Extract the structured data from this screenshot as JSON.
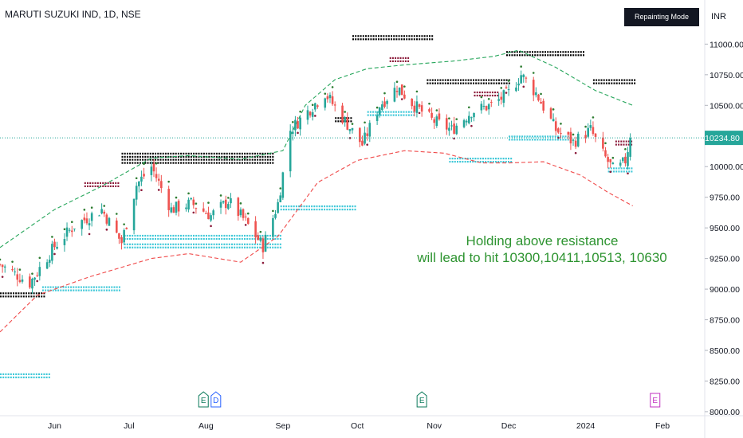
{
  "header": {
    "symbol_title": "MARUTI SUZUKI IND, 1D, NSE",
    "repaint_badge": "Repainting Mode Enabled",
    "currency": "INR"
  },
  "annotation": {
    "line1": "Holding above resistance",
    "line2": "will lead to hit 10300,10411,10513, 10630"
  },
  "colors": {
    "up": "#26a69a",
    "down": "#ef5350",
    "upper_band": "#26a65b",
    "lower_band": "#f04a4a",
    "support_dots": "#3ec8d8",
    "resistance_dots": "#8b1a3a",
    "level_dots": "#000000",
    "signal_green": "#2e7d32",
    "text": "#131722",
    "annotation": "#2e9431",
    "event_earnings": "#0b7a5a",
    "event_dividend": "#2962ff",
    "event_e_purple": "#c030c0"
  },
  "chart_data": {
    "type": "candlestick",
    "title": "MARUTI SUZUKI IND, 1D, NSE",
    "ylim": [
      7980,
      11100
    ],
    "y_ticks": [
      11000,
      10750,
      10500,
      10250,
      10000,
      9750,
      9500,
      9250,
      9000,
      8750,
      8500,
      8250,
      8000
    ],
    "y_tick_labels": [
      "11000.00",
      "10750.00",
      "10500.00",
      "10250.00",
      "10000.00",
      "9750.00",
      "9500.00",
      "9250.00",
      "9000.00",
      "8750.00",
      "8500.00",
      "8250.00",
      "8000.00"
    ],
    "x_ticks": [
      {
        "label": "Jun",
        "date": "2023-06-01"
      },
      {
        "label": "Jul",
        "date": "2023-07-01"
      },
      {
        "label": "Aug",
        "date": "2023-08-01"
      },
      {
        "label": "Sep",
        "date": "2023-09-01"
      },
      {
        "label": "Oct",
        "date": "2023-10-01"
      },
      {
        "label": "Nov",
        "date": "2023-11-01"
      },
      {
        "label": "Dec",
        "date": "2023-12-01"
      },
      {
        "label": "2024",
        "date": "2024-01-01"
      },
      {
        "label": "Feb",
        "date": "2024-02-01"
      }
    ],
    "x_range": [
      "2023-05-10",
      "2024-02-18"
    ],
    "last_price": 10234.8,
    "last_price_label": "10234.80",
    "events": [
      {
        "label": "E",
        "date": "2023-07-31",
        "kind": "earnings"
      },
      {
        "label": "D",
        "date": "2023-08-05",
        "kind": "dividend"
      },
      {
        "label": "E",
        "date": "2023-10-27",
        "kind": "earnings"
      },
      {
        "label": "E",
        "date": "2024-01-29",
        "kind": "future"
      }
    ],
    "waypoints": [
      [
        "2023-05-10",
        9200
      ],
      [
        "2023-05-22",
        9050
      ],
      [
        "2023-06-01",
        9350
      ],
      [
        "2023-06-09",
        9520
      ],
      [
        "2023-06-20",
        9650
      ],
      [
        "2023-06-28",
        9380
      ],
      [
        "2023-07-04",
        9850
      ],
      [
        "2023-07-10",
        10000
      ],
      [
        "2023-07-18",
        9650
      ],
      [
        "2023-07-26",
        9700
      ],
      [
        "2023-08-03",
        9600
      ],
      [
        "2023-08-10",
        9720
      ],
      [
        "2023-08-17",
        9550
      ],
      [
        "2023-08-24",
        9350
      ],
      [
        "2023-08-30",
        9700
      ],
      [
        "2023-09-04",
        10300
      ],
      [
        "2023-09-11",
        10450
      ],
      [
        "2023-09-18",
        10600
      ],
      [
        "2023-09-25",
        10400
      ],
      [
        "2023-10-03",
        10180
      ],
      [
        "2023-10-10",
        10500
      ],
      [
        "2023-10-17",
        10650
      ],
      [
        "2023-10-24",
        10500
      ],
      [
        "2023-10-31",
        10380
      ],
      [
        "2023-11-08",
        10300
      ],
      [
        "2023-11-16",
        10450
      ],
      [
        "2023-11-24",
        10500
      ],
      [
        "2023-12-01",
        10600
      ],
      [
        "2023-12-06",
        10750
      ],
      [
        "2023-12-12",
        10600
      ],
      [
        "2023-12-20",
        10300
      ],
      [
        "2023-12-27",
        10200
      ],
      [
        "2024-01-03",
        10300
      ],
      [
        "2024-01-08",
        10100
      ],
      [
        "2024-01-13",
        9950
      ],
      [
        "2024-01-17",
        10050
      ],
      [
        "2024-01-19",
        10234.8
      ]
    ],
    "upper_band": [
      [
        "2023-05-10",
        9340
      ],
      [
        "2023-06-01",
        9650
      ],
      [
        "2023-06-20",
        9840
      ],
      [
        "2023-07-10",
        10070
      ],
      [
        "2023-07-25",
        10090
      ],
      [
        "2023-08-15",
        10060
      ],
      [
        "2023-09-01",
        10130
      ],
      [
        "2023-09-10",
        10500
      ],
      [
        "2023-09-22",
        10710
      ],
      [
        "2023-10-05",
        10800
      ],
      [
        "2023-10-20",
        10830
      ],
      [
        "2023-11-08",
        10860
      ],
      [
        "2023-11-25",
        10900
      ],
      [
        "2023-12-05",
        10950
      ],
      [
        "2023-12-20",
        10810
      ],
      [
        "2024-01-05",
        10620
      ],
      [
        "2024-01-20",
        10500
      ]
    ],
    "lower_band": [
      [
        "2023-05-10",
        8650
      ],
      [
        "2023-05-25",
        8950
      ],
      [
        "2023-06-15",
        9100
      ],
      [
        "2023-07-10",
        9250
      ],
      [
        "2023-07-25",
        9290
      ],
      [
        "2023-08-15",
        9220
      ],
      [
        "2023-08-30",
        9430
      ],
      [
        "2023-09-15",
        9870
      ],
      [
        "2023-10-01",
        10050
      ],
      [
        "2023-10-20",
        10130
      ],
      [
        "2023-11-05",
        10110
      ],
      [
        "2023-11-20",
        10030
      ],
      [
        "2023-12-01",
        10030
      ],
      [
        "2023-12-15",
        10040
      ],
      [
        "2023-12-30",
        9930
      ],
      [
        "2024-01-10",
        9790
      ],
      [
        "2024-01-20",
        9680
      ]
    ],
    "dotted_levels": [
      {
        "kind": "level",
        "price": 8960,
        "start": "2023-05-10",
        "end": "2023-05-28"
      },
      {
        "kind": "level",
        "price": 10100,
        "start": "2023-06-28",
        "end": "2023-08-28"
      },
      {
        "kind": "level",
        "price": 10050,
        "start": "2023-06-28",
        "end": "2023-08-28"
      },
      {
        "kind": "level",
        "price": 11060,
        "start": "2023-09-29",
        "end": "2023-10-31"
      },
      {
        "kind": "level",
        "price": 10700,
        "start": "2023-10-29",
        "end": "2023-12-01"
      },
      {
        "kind": "level",
        "price": 10930,
        "start": "2023-11-30",
        "end": "2023-12-31"
      },
      {
        "kind": "level",
        "price": 10700,
        "start": "2024-01-04",
        "end": "2024-01-21"
      },
      {
        "kind": "level",
        "price": 10390,
        "start": "2023-09-22",
        "end": "2023-09-29"
      },
      {
        "kind": "support",
        "price": 8300,
        "start": "2023-05-10",
        "end": "2023-05-30"
      },
      {
        "kind": "support",
        "price": 9010,
        "start": "2023-05-27",
        "end": "2023-06-27"
      },
      {
        "kind": "support",
        "price": 9360,
        "start": "2023-06-29",
        "end": "2023-08-31"
      },
      {
        "kind": "support",
        "price": 9430,
        "start": "2023-06-29",
        "end": "2023-08-31"
      },
      {
        "kind": "support",
        "price": 9670,
        "start": "2023-08-31",
        "end": "2023-09-30"
      },
      {
        "kind": "support",
        "price": 10440,
        "start": "2023-10-05",
        "end": "2023-10-24"
      },
      {
        "kind": "support",
        "price": 10060,
        "start": "2023-11-07",
        "end": "2023-12-02"
      },
      {
        "kind": "support",
        "price": 10240,
        "start": "2023-12-01",
        "end": "2023-12-26"
      },
      {
        "kind": "support",
        "price": 9980,
        "start": "2024-01-10",
        "end": "2024-01-20"
      },
      {
        "kind": "resistance",
        "price": 9860,
        "start": "2023-06-13",
        "end": "2023-06-27"
      },
      {
        "kind": "resistance",
        "price": 10880,
        "start": "2023-10-14",
        "end": "2023-10-22"
      },
      {
        "kind": "resistance",
        "price": 10600,
        "start": "2023-11-17",
        "end": "2023-11-27"
      },
      {
        "kind": "resistance",
        "price": 10200,
        "start": "2024-01-13",
        "end": "2024-01-20"
      }
    ]
  }
}
